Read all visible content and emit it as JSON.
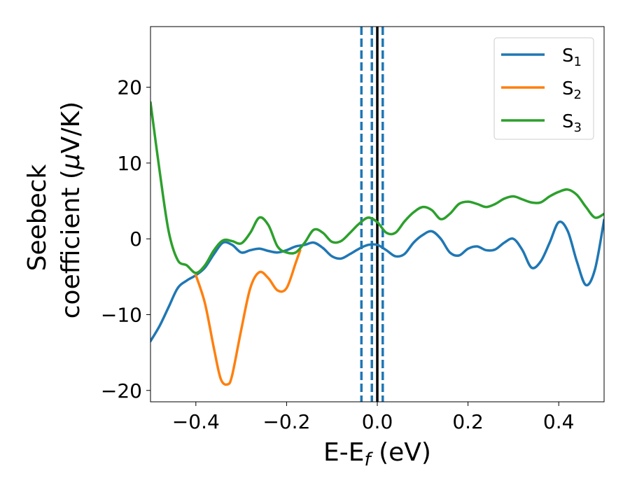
{
  "chart_data": {
    "type": "line",
    "xlabel": {
      "main": "E-E",
      "sub": "f",
      "suffix": " (eV)"
    },
    "ylabel": {
      "line1": "Seebeck",
      "line2_prefix": "coefficient  (",
      "mu": "μ",
      "line2_suffix": "V/K)"
    },
    "xlim": [
      -0.5,
      0.5
    ],
    "ylim": [
      -21.5,
      28
    ],
    "xticks": [
      -0.4,
      -0.2,
      0.0,
      0.2,
      0.4
    ],
    "xtick_labels": [
      "−0.4",
      "−0.2",
      "0.0",
      "0.2",
      "0.4"
    ],
    "yticks": [
      -20,
      -10,
      0,
      10,
      20
    ],
    "ytick_labels": [
      "−20",
      "−10",
      "0",
      "10",
      "20"
    ],
    "grid": false,
    "legend_position": "top-right",
    "vertical_lines": [
      {
        "x": -0.035,
        "style": "dashed",
        "color": "#1f77b4"
      },
      {
        "x": -0.012,
        "style": "dashed",
        "color": "#1f77b4"
      },
      {
        "x": 0.0,
        "style": "solid",
        "color": "#000000"
      },
      {
        "x": 0.012,
        "style": "dashed",
        "color": "#1f77b4"
      }
    ],
    "series": [
      {
        "name": "S",
        "sub": "1",
        "color": "#1f77b4",
        "points": [
          [
            -0.5,
            -13.5
          ],
          [
            -0.48,
            -11.5
          ],
          [
            -0.46,
            -9
          ],
          [
            -0.44,
            -6.5
          ],
          [
            -0.42,
            -5.5
          ],
          [
            -0.4,
            -4.8
          ],
          [
            -0.38,
            -3.8
          ],
          [
            -0.36,
            -2.0
          ],
          [
            -0.34,
            -0.5
          ],
          [
            -0.32,
            -0.8
          ],
          [
            -0.3,
            -1.8
          ],
          [
            -0.28,
            -1.5
          ],
          [
            -0.26,
            -1.3
          ],
          [
            -0.24,
            -1.6
          ],
          [
            -0.22,
            -1.8
          ],
          [
            -0.2,
            -1.5
          ],
          [
            -0.18,
            -1.0
          ],
          [
            -0.16,
            -0.8
          ],
          [
            -0.14,
            -0.5
          ],
          [
            -0.12,
            -1.2
          ],
          [
            -0.1,
            -2.3
          ],
          [
            -0.08,
            -2.6
          ],
          [
            -0.06,
            -2.0
          ],
          [
            -0.04,
            -1.3
          ],
          [
            -0.02,
            -0.8
          ],
          [
            0.0,
            -0.8
          ],
          [
            0.02,
            -1.5
          ],
          [
            0.04,
            -2.3
          ],
          [
            0.06,
            -2.0
          ],
          [
            0.08,
            -0.5
          ],
          [
            0.1,
            0.5
          ],
          [
            0.12,
            1.0
          ],
          [
            0.14,
            0.0
          ],
          [
            0.16,
            -1.8
          ],
          [
            0.18,
            -2.2
          ],
          [
            0.2,
            -1.3
          ],
          [
            0.22,
            -1.0
          ],
          [
            0.24,
            -1.5
          ],
          [
            0.26,
            -1.4
          ],
          [
            0.28,
            -0.5
          ],
          [
            0.3,
            0.0
          ],
          [
            0.32,
            -1.5
          ],
          [
            0.34,
            -3.8
          ],
          [
            0.36,
            -3.0
          ],
          [
            0.38,
            -0.5
          ],
          [
            0.4,
            2.2
          ],
          [
            0.42,
            1.0
          ],
          [
            0.44,
            -3.0
          ],
          [
            0.46,
            -6.1
          ],
          [
            0.48,
            -4.0
          ],
          [
            0.5,
            2.5
          ]
        ]
      },
      {
        "name": "S",
        "sub": "2",
        "color": "#ff7f0e",
        "points": [
          [
            -0.4,
            -4.8
          ],
          [
            -0.38,
            -8.5
          ],
          [
            -0.36,
            -14.5
          ],
          [
            -0.345,
            -18.5
          ],
          [
            -0.33,
            -19.2
          ],
          [
            -0.32,
            -18.0
          ],
          [
            -0.3,
            -12.0
          ],
          [
            -0.28,
            -6.5
          ],
          [
            -0.26,
            -4.4
          ],
          [
            -0.24,
            -5.2
          ],
          [
            -0.22,
            -6.8
          ],
          [
            -0.2,
            -6.5
          ],
          [
            -0.18,
            -3.2
          ],
          [
            -0.17,
            -1.5
          ]
        ]
      },
      {
        "name": "S",
        "sub": "3",
        "color": "#2ca02c",
        "points": [
          [
            -0.5,
            18.0
          ],
          [
            -0.48,
            9.0
          ],
          [
            -0.46,
            1.0
          ],
          [
            -0.44,
            -2.8
          ],
          [
            -0.42,
            -3.5
          ],
          [
            -0.4,
            -4.5
          ],
          [
            -0.38,
            -3.5
          ],
          [
            -0.36,
            -1.5
          ],
          [
            -0.34,
            -0.2
          ],
          [
            -0.32,
            -0.3
          ],
          [
            -0.3,
            -0.6
          ],
          [
            -0.28,
            0.8
          ],
          [
            -0.26,
            2.8
          ],
          [
            -0.24,
            1.8
          ],
          [
            -0.22,
            -1.0
          ],
          [
            -0.2,
            -1.8
          ],
          [
            -0.18,
            -1.8
          ],
          [
            -0.16,
            -0.5
          ],
          [
            -0.14,
            1.2
          ],
          [
            -0.12,
            0.8
          ],
          [
            -0.1,
            -0.4
          ],
          [
            -0.08,
            -0.3
          ],
          [
            -0.06,
            0.8
          ],
          [
            -0.04,
            2.0
          ],
          [
            -0.02,
            2.8
          ],
          [
            0.0,
            2.2
          ],
          [
            0.02,
            0.8
          ],
          [
            0.04,
            0.8
          ],
          [
            0.06,
            2.3
          ],
          [
            0.08,
            3.5
          ],
          [
            0.1,
            4.2
          ],
          [
            0.12,
            3.8
          ],
          [
            0.14,
            2.6
          ],
          [
            0.16,
            3.3
          ],
          [
            0.18,
            4.6
          ],
          [
            0.2,
            4.9
          ],
          [
            0.22,
            4.6
          ],
          [
            0.24,
            4.2
          ],
          [
            0.26,
            4.6
          ],
          [
            0.28,
            5.3
          ],
          [
            0.3,
            5.6
          ],
          [
            0.32,
            5.2
          ],
          [
            0.34,
            4.8
          ],
          [
            0.36,
            4.8
          ],
          [
            0.38,
            5.6
          ],
          [
            0.4,
            6.2
          ],
          [
            0.42,
            6.5
          ],
          [
            0.44,
            5.8
          ],
          [
            0.46,
            4.2
          ],
          [
            0.48,
            2.8
          ],
          [
            0.5,
            3.3
          ]
        ]
      }
    ]
  }
}
